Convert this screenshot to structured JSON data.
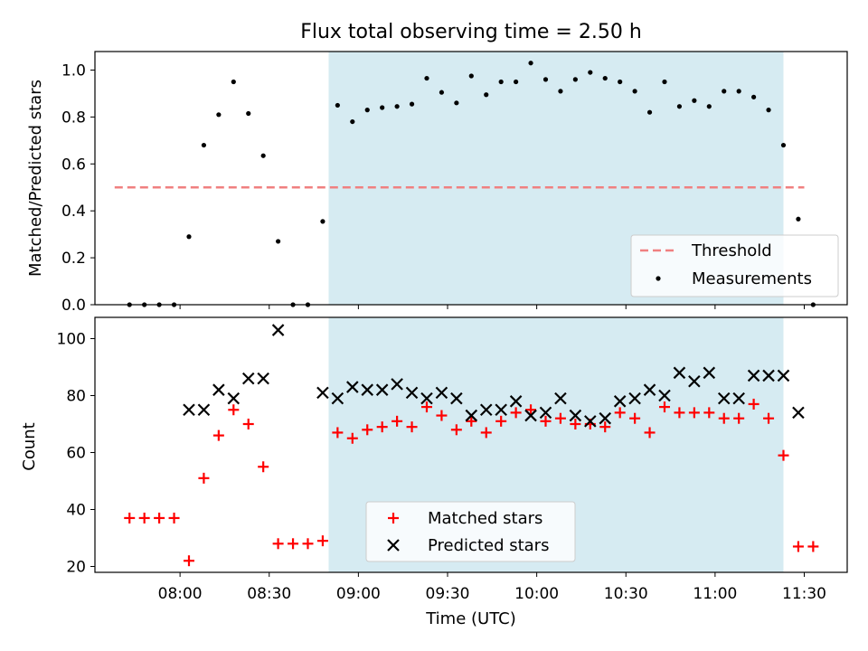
{
  "title": "Flux total observing time = 2.50 h",
  "colors": {
    "threshold": "#f08080",
    "measurement": "#000000",
    "matched": "#ff0000",
    "predicted": "#000000",
    "observing_span": "#add8e6"
  },
  "chart_data": [
    {
      "type": "scatter",
      "panel": "top",
      "ylabel": "Matched/Predicted stars",
      "ylim": [
        0,
        1.08
      ],
      "yticks": [
        "0.0",
        "0.2",
        "0.4",
        "0.6",
        "0.8",
        "1.0"
      ],
      "x_unit": "minutes after 07:30 UTC",
      "observing_span": [
        "08:50",
        "11:23"
      ],
      "threshold": {
        "name": "Threshold",
        "value": 0.5,
        "x_range": [
          "07:38",
          "11:30"
        ]
      },
      "series": [
        {
          "name": "Measurements",
          "x": [
            "07:43",
            "07:48",
            "07:53",
            "07:58",
            "08:03",
            "08:08",
            "08:13",
            "08:18",
            "08:23",
            "08:28",
            "08:33",
            "08:38",
            "08:43",
            "08:48",
            "08:53",
            "08:58",
            "09:03",
            "09:08",
            "09:13",
            "09:18",
            "09:23",
            "09:28",
            "09:33",
            "09:38",
            "09:43",
            "09:48",
            "09:53",
            "09:58",
            "10:03",
            "10:08",
            "10:13",
            "10:18",
            "10:23",
            "10:28",
            "10:33",
            "10:38",
            "10:43",
            "10:48",
            "10:53",
            "10:58",
            "11:03",
            "11:08",
            "11:13",
            "11:18",
            "11:23",
            "11:28",
            "11:33"
          ],
          "y": [
            0,
            0,
            0,
            0,
            0.29,
            0.68,
            0.81,
            0.95,
            0.815,
            0.635,
            0.27,
            0,
            0,
            0.355,
            0.85,
            0.78,
            0.83,
            0.84,
            0.845,
            0.855,
            0.965,
            0.905,
            0.86,
            0.975,
            0.895,
            0.95,
            0.95,
            1.03,
            0.96,
            0.91,
            0.96,
            0.99,
            0.965,
            0.95,
            0.91,
            0.82,
            0.95,
            0.845,
            0.87,
            0.845,
            0.91,
            0.91,
            0.885,
            0.83,
            0.68,
            0.365,
            0
          ]
        }
      ],
      "legend": {
        "position": "lower-right",
        "entries": [
          "Threshold",
          "Measurements"
        ]
      }
    },
    {
      "type": "scatter",
      "panel": "bottom",
      "xlabel": "Time (UTC)",
      "ylabel": "Count",
      "ylim": [
        18,
        107
      ],
      "yticks": [
        "20",
        "40",
        "60",
        "80",
        "100"
      ],
      "xticks": [
        "08:00",
        "08:30",
        "09:00",
        "09:30",
        "10:00",
        "10:30",
        "11:00",
        "11:30"
      ],
      "observing_span": [
        "08:50",
        "11:23"
      ],
      "series": [
        {
          "name": "Matched stars",
          "marker": "plus",
          "x": [
            "07:43",
            "07:48",
            "07:53",
            "07:58",
            "08:03",
            "08:08",
            "08:13",
            "08:18",
            "08:23",
            "08:28",
            "08:33",
            "08:38",
            "08:43",
            "08:48",
            "08:53",
            "08:58",
            "09:03",
            "09:08",
            "09:13",
            "09:18",
            "09:23",
            "09:28",
            "09:33",
            "09:38",
            "09:43",
            "09:48",
            "09:53",
            "09:58",
            "10:03",
            "10:08",
            "10:13",
            "10:18",
            "10:23",
            "10:28",
            "10:33",
            "10:38",
            "10:43",
            "10:48",
            "10:53",
            "10:58",
            "11:03",
            "11:08",
            "11:13",
            "11:18",
            "11:23",
            "11:28",
            "11:33"
          ],
          "y": [
            37,
            37,
            37,
            37,
            22,
            51,
            66,
            75,
            70,
            55,
            28,
            28,
            28,
            29,
            67,
            65,
            68,
            69,
            71,
            69,
            76,
            73,
            68,
            71,
            67,
            71,
            74,
            75,
            71,
            72,
            70,
            70,
            69,
            74,
            72,
            67,
            76,
            74,
            74,
            74,
            72,
            72,
            77,
            72,
            59,
            27,
            27
          ]
        },
        {
          "name": "Predicted stars",
          "marker": "x",
          "x": [
            "08:03",
            "08:08",
            "08:13",
            "08:18",
            "08:23",
            "08:28",
            "08:33",
            "08:48",
            "08:53",
            "08:58",
            "09:03",
            "09:08",
            "09:13",
            "09:18",
            "09:23",
            "09:28",
            "09:33",
            "09:38",
            "09:43",
            "09:48",
            "09:53",
            "09:58",
            "10:03",
            "10:08",
            "10:13",
            "10:18",
            "10:23",
            "10:28",
            "10:33",
            "10:38",
            "10:43",
            "10:48",
            "10:53",
            "10:58",
            "11:03",
            "11:08",
            "11:13",
            "11:18",
            "11:23",
            "11:28"
          ],
          "y": [
            75,
            75,
            82,
            79,
            86,
            86,
            103,
            81,
            79,
            83,
            82,
            82,
            84,
            81,
            79,
            81,
            79,
            73,
            75,
            75,
            78,
            73,
            74,
            79,
            73,
            71,
            72,
            78,
            79,
            82,
            80,
            88,
            85,
            88,
            79,
            79,
            87,
            87,
            87,
            74
          ]
        }
      ],
      "legend": {
        "position": "lower-center",
        "entries": [
          "Matched stars",
          "Predicted stars"
        ]
      }
    }
  ]
}
